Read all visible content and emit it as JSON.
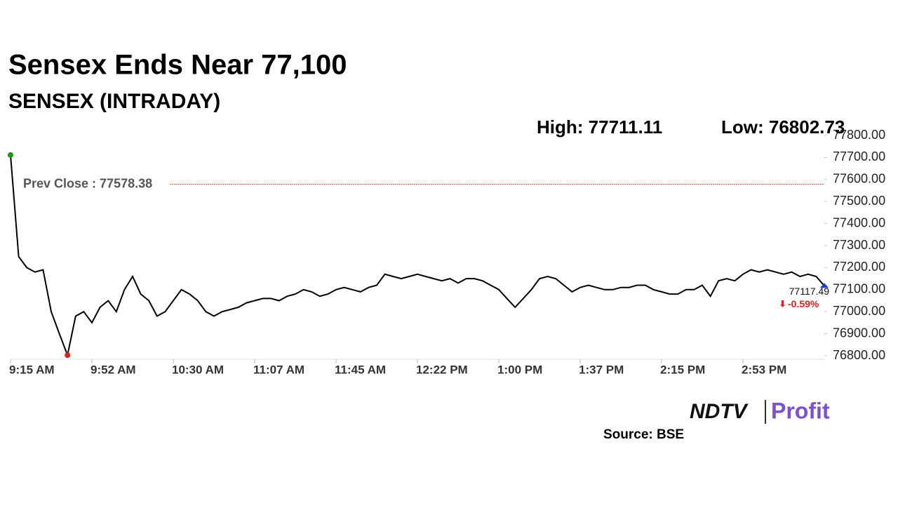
{
  "chart_data": {
    "type": "line",
    "title": "Sensex Ends Near 77,100",
    "subtitle": "SENSEX (INTRADAY)",
    "high_label": "High: 77711.11",
    "low_label": "Low: 76802.73",
    "prev_close": {
      "value": 77578.38,
      "label": "Prev Close : 77578.38"
    },
    "change_label": "-0.59%",
    "source": "Source: BSE",
    "logo": {
      "left": "NDTV",
      "right": "Profit"
    },
    "categories": [
      "9:15 AM",
      null,
      null,
      null,
      null,
      null,
      null,
      null,
      null,
      null,
      "9:52 AM",
      null,
      null,
      null,
      null,
      null,
      null,
      null,
      null,
      null,
      "10:30 AM",
      null,
      null,
      null,
      null,
      null,
      null,
      null,
      null,
      null,
      "11:07 AM",
      null,
      null,
      null,
      null,
      null,
      null,
      null,
      null,
      null,
      "11:45 AM",
      null,
      null,
      null,
      null,
      null,
      null,
      null,
      null,
      null,
      "12:22 PM",
      null,
      null,
      null,
      null,
      null,
      null,
      null,
      null,
      null,
      "1:00 PM",
      null,
      null,
      null,
      null,
      null,
      null,
      null,
      null,
      null,
      "1:37 PM",
      null,
      null,
      null,
      null,
      null,
      null,
      null,
      null,
      null,
      "2:15 PM",
      null,
      null,
      null,
      null,
      null,
      null,
      null,
      null,
      null,
      "2:53 PM",
      null,
      null,
      null,
      null,
      null,
      null,
      null,
      null,
      null,
      null
    ],
    "series": [
      {
        "name": "SENSEX",
        "color": "#000000",
        "values": [
          77711.11,
          77250,
          77200,
          77180,
          77190,
          77000,
          76900,
          76802.73,
          76980,
          77000,
          76950,
          77020,
          77050,
          77000,
          77100,
          77160,
          77080,
          77050,
          76980,
          77000,
          77050,
          77100,
          77080,
          77050,
          77000,
          76980,
          77000,
          77010,
          77020,
          77040,
          77050,
          77060,
          77060,
          77050,
          77070,
          77080,
          77100,
          77090,
          77070,
          77080,
          77100,
          77110,
          77100,
          77090,
          77110,
          77120,
          77170,
          77160,
          77150,
          77160,
          77170,
          77160,
          77150,
          77140,
          77150,
          77130,
          77150,
          77150,
          77140,
          77120,
          77100,
          77060,
          77020,
          77060,
          77100,
          77150,
          77160,
          77150,
          77120,
          77090,
          77110,
          77120,
          77110,
          77100,
          77100,
          77110,
          77110,
          77120,
          77120,
          77100,
          77090,
          77080,
          77080,
          77100,
          77100,
          77120,
          77070,
          77140,
          77150,
          77140,
          77170,
          77190,
          77180,
          77190,
          77180,
          77170,
          77180,
          77160,
          77170,
          77160,
          77117.49
        ]
      }
    ],
    "ylim": [
      76800,
      77800
    ],
    "yticks": [
      {
        "value": 76800,
        "label": "76800.00"
      },
      {
        "value": 76900,
        "label": "76900.00"
      },
      {
        "value": 77000,
        "label": "77000.00"
      },
      {
        "value": 77100,
        "label": "77100.00"
      },
      {
        "value": 77200,
        "label": "77200.00"
      },
      {
        "value": 77300,
        "label": "77300.00"
      },
      {
        "value": 77400,
        "label": "77400.00"
      },
      {
        "value": 77500,
        "label": "77500.00"
      },
      {
        "value": 77600,
        "label": "77600.00"
      },
      {
        "value": 77700,
        "label": "77700.00"
      },
      {
        "value": 77800,
        "label": "77800.00"
      }
    ],
    "grid": false
  }
}
